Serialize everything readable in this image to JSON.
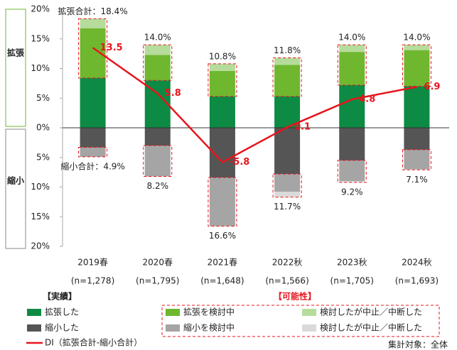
{
  "chart_data": {
    "type": "stacked-bar-line",
    "categories": [
      "2019春",
      "2020春",
      "2021春",
      "2022秋",
      "2023秋",
      "2024秋"
    ],
    "sample_sizes": [
      "(n=1,278)",
      "(n=1,795)",
      "(n=1,648)",
      "(n=1,566)",
      "(n=1,705)",
      "(n=1,693)"
    ],
    "side_labels": [
      "拡張",
      "縮小"
    ],
    "ylim": [
      -20,
      20
    ],
    "yticks": [
      {
        "value": -20,
        "label": "20%"
      },
      {
        "value": -15,
        "label": "15%"
      },
      {
        "value": -10,
        "label": "10%"
      },
      {
        "value": -5,
        "label": "5%"
      },
      {
        "value": 0,
        "label": "0%"
      },
      {
        "value": 5,
        "label": "5%"
      },
      {
        "value": 10,
        "label": "10%"
      },
      {
        "value": 15,
        "label": "15%"
      },
      {
        "value": 20,
        "label": "20%"
      }
    ],
    "legend_titles": {
      "actual": "【実績】",
      "possible": "【可能性】"
    },
    "series": [
      {
        "name": "拡張した",
        "color": "#0d8a43",
        "group": "actual",
        "values": [
          8.4,
          8.0,
          5.3,
          5.3,
          7.2,
          7.0
        ]
      },
      {
        "name": "縮小した",
        "color": "#555555",
        "group": "actual",
        "values": [
          -3.3,
          -3.0,
          -8.4,
          -7.8,
          -5.5,
          -3.7
        ]
      },
      {
        "name": "拡張を検討中",
        "color": "#6fb72f",
        "group": "possible",
        "values": [
          8.4,
          4.3,
          4.3,
          5.3,
          5.6,
          6.1
        ]
      },
      {
        "name": "縮小を検討中",
        "color": "#a5a5a5",
        "group": "possible",
        "values": [
          -1.6,
          -5.2,
          -8.2,
          -3.0,
          -3.5,
          -3.3
        ]
      },
      {
        "name": "検討したが中止／中断した",
        "color": "#b6dc9c",
        "group": "possible",
        "values": [
          1.6,
          1.7,
          1.2,
          1.2,
          1.2,
          0.9
        ]
      },
      {
        "name": "検討したが中止／中断した",
        "color": "#dadada",
        "group": "possible",
        "values": [
          0,
          0,
          0,
          -0.9,
          -0.2,
          -0.1
        ]
      }
    ],
    "totals": [
      {
        "values": [
          18.4,
          14.0,
          10.8,
          11.8,
          14.0,
          14.0
        ],
        "value_labels": [
          "拡張合計：18.4%",
          "14.0%",
          "10.8%",
          "11.8%",
          "14.0%",
          "14.0%"
        ]
      },
      {
        "values": [
          -4.9,
          -8.2,
          -16.6,
          -11.7,
          -9.2,
          -7.1
        ],
        "value_labels": [
          "縮小合計：4.9%",
          "8.2%",
          "16.6%",
          "11.7%",
          "9.2%",
          "7.1%"
        ]
      }
    ],
    "line": {
      "name": "DI（拡張合計-縮小合計）",
      "color": "#e8141c",
      "values": [
        13.5,
        5.8,
        -5.8,
        0.1,
        4.8,
        6.9
      ]
    },
    "footnote": "集計対象：全体"
  }
}
